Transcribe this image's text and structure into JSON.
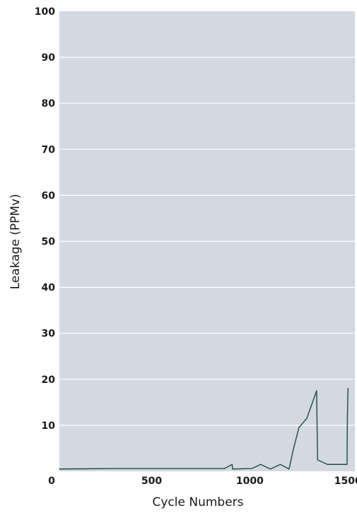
{
  "chart_data": {
    "type": "line",
    "title": "",
    "xlabel": "Cycle Numbers",
    "ylabel": "Leakage (PPMv)",
    "xlim": [
      30,
      1535
    ],
    "ylim": [
      0,
      100
    ],
    "x_ticks": [
      {
        "value": 500,
        "label": "500"
      },
      {
        "value": 1000,
        "label": "1000"
      },
      {
        "value": 1500,
        "label": "1500"
      }
    ],
    "origin_label": "0",
    "y_ticks": [
      {
        "value": 10,
        "label": "10"
      },
      {
        "value": 20,
        "label": "20"
      },
      {
        "value": 30,
        "label": "30"
      },
      {
        "value": 40,
        "label": "40"
      },
      {
        "value": 50,
        "label": "50"
      },
      {
        "value": 60,
        "label": "60"
      },
      {
        "value": 70,
        "label": "70"
      },
      {
        "value": 80,
        "label": "80"
      },
      {
        "value": 90,
        "label": "90"
      },
      {
        "value": 100,
        "label": "100"
      }
    ],
    "grid": true,
    "colors": {
      "background": "#d3d8e1",
      "grid": "#ffffff",
      "line": "#1e4d40"
    },
    "series": [
      {
        "x": [
          30,
          300,
          600,
          870,
          910,
          912,
          1010,
          1055,
          1105,
          1155,
          1200,
          1220,
          1250,
          1290,
          1340,
          1345,
          1395,
          1495,
          1497,
          1500
        ],
        "y": [
          0.5,
          0.6,
          0.6,
          0.6,
          1.5,
          0.5,
          0.6,
          1.5,
          0.5,
          1.5,
          0.5,
          4.5,
          9.5,
          11.5,
          17.5,
          2.5,
          1.5,
          1.5,
          12,
          18
        ]
      }
    ]
  }
}
